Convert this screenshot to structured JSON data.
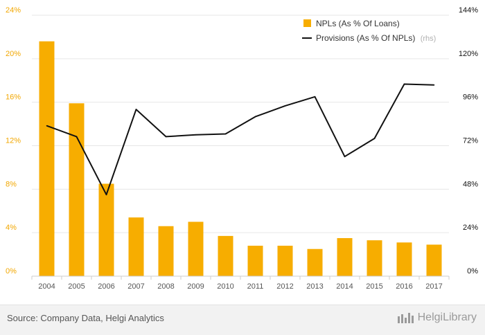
{
  "colors": {
    "bar": "#f7ad00",
    "line": "#111111",
    "left_axis_text": "#f2a700",
    "right_axis_text": "#111111",
    "grid": "#e6e6e6",
    "x_axis_text": "#555555",
    "rhs_note": "#b0b0b0"
  },
  "chart_data": {
    "type": "bar",
    "categories": [
      "2004",
      "2005",
      "2006",
      "2007",
      "2008",
      "2009",
      "2010",
      "2011",
      "2012",
      "2013",
      "2014",
      "2015",
      "2016",
      "2017"
    ],
    "series": [
      {
        "name": "NPLs (As % Of Loans)",
        "type": "bar",
        "axis": "left",
        "values": [
          21.6,
          15.9,
          8.5,
          5.4,
          4.6,
          5.0,
          3.7,
          2.8,
          2.8,
          2.5,
          3.5,
          3.3,
          3.1,
          2.9
        ]
      },
      {
        "name": "Provisions (As % Of NPLs)",
        "type": "line",
        "axis": "right",
        "values": [
          83,
          77,
          45,
          92,
          77,
          78,
          78.5,
          88,
          94,
          99,
          66,
          76,
          106,
          105.5
        ]
      }
    ],
    "left_axis": {
      "ylim": [
        0,
        24
      ],
      "ticks": [
        "0%",
        "4%",
        "8%",
        "12%",
        "16%",
        "20%",
        "24%"
      ],
      "tick_values": [
        0,
        4,
        8,
        12,
        16,
        20,
        24
      ]
    },
    "right_axis": {
      "ylim": [
        0,
        144
      ],
      "ticks": [
        "0%",
        "24%",
        "48%",
        "72%",
        "96%",
        "120%",
        "144%"
      ],
      "tick_values": [
        0,
        24,
        48,
        72,
        96,
        120,
        144
      ]
    },
    "legend": {
      "position": "top-right",
      "items": [
        "NPLs (As % Of Loans)",
        "Provisions (As % Of NPLs)"
      ],
      "rhs_note": "(rhs)"
    },
    "grid": true
  },
  "footer": {
    "source": "Source: Company Data, Helgi Analytics",
    "brand": "HelgiLibrary"
  }
}
